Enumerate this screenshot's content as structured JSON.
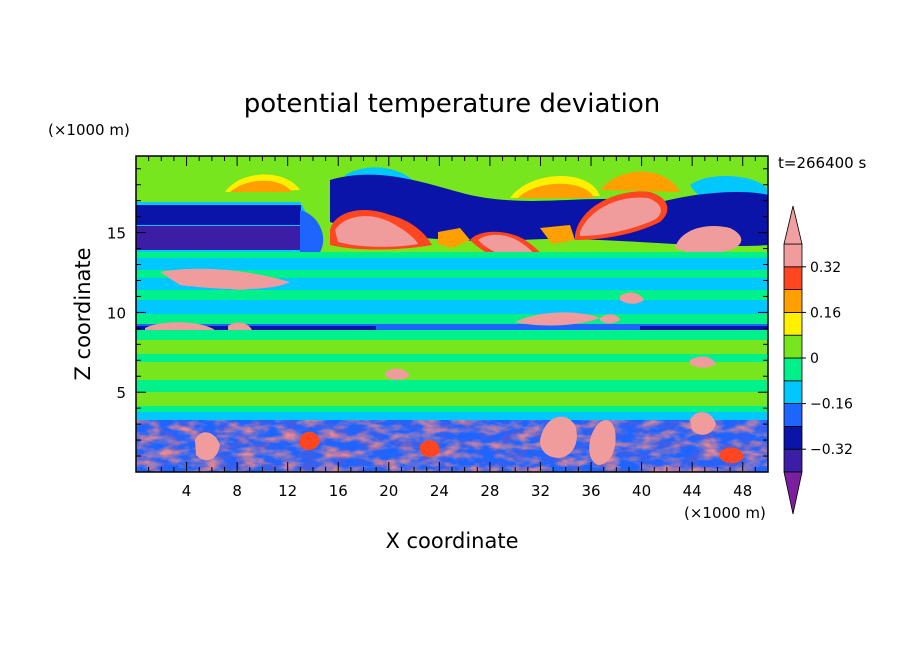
{
  "chart_data": {
    "type": "heatmap",
    "title": "potential temperature deviation",
    "xlabel": "X coordinate",
    "ylabel": "Z coordinate",
    "x_unit": "(×1000 m)",
    "y_unit": "(×1000 m)",
    "time_label": "t=266400 s",
    "xlim": [
      0,
      50
    ],
    "ylim": [
      0,
      19.8
    ],
    "x_ticks": [
      4,
      8,
      12,
      16,
      20,
      24,
      28,
      32,
      36,
      40,
      44,
      48
    ],
    "y_ticks": [
      5,
      10,
      15
    ],
    "colorbar": {
      "levels": [
        -0.4,
        -0.32,
        -0.24,
        -0.16,
        -0.08,
        0,
        0.08,
        0.16,
        0.24,
        0.32,
        0.4
      ],
      "tick_values": [
        0.32,
        0.16,
        0,
        -0.16,
        -0.32
      ],
      "tick_labels": [
        "0.32",
        "0.16",
        "0",
        "−0.16",
        "−0.32"
      ],
      "extend": "both",
      "colors": [
        "#7b1fa0",
        "#3c1ea6",
        "#0a14a8",
        "#1e64ff",
        "#00c8ff",
        "#00f08c",
        "#78e61e",
        "#fff000",
        "#ffa000",
        "#ff4620",
        "#f09c9c",
        "#f0a0a0"
      ]
    }
  }
}
